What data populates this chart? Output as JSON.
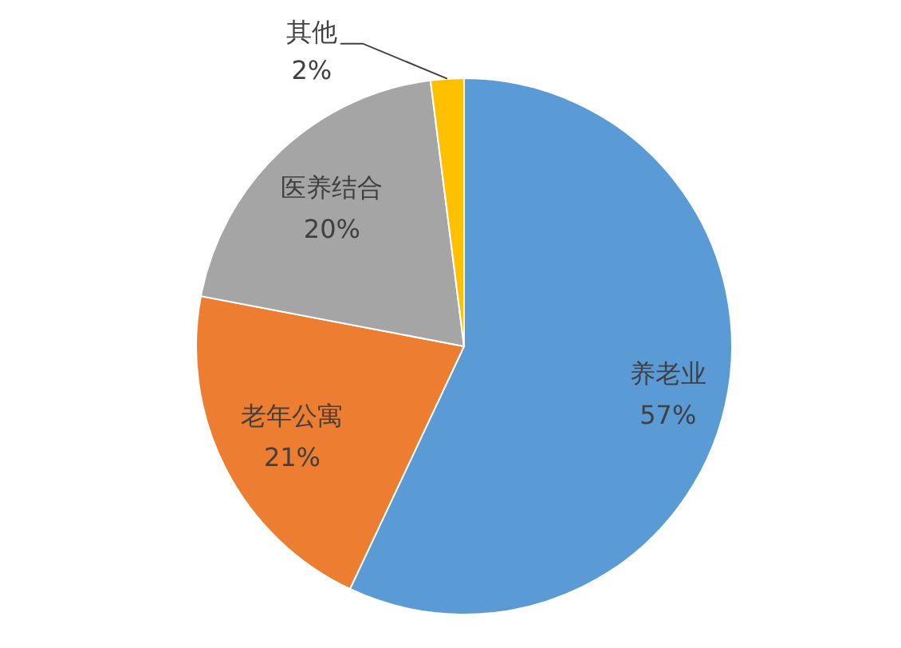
{
  "chart_data": {
    "type": "pie",
    "categories": [
      "养老业",
      "老年公寓",
      "医养结合",
      "其他"
    ],
    "values": [
      57,
      21,
      20,
      2
    ],
    "value_labels": [
      "57%",
      "21%",
      "20%",
      "2%"
    ],
    "colors": [
      "#5b9bd5",
      "#ed7d31",
      "#a5a5a5",
      "#ffc000"
    ],
    "legend": false
  }
}
